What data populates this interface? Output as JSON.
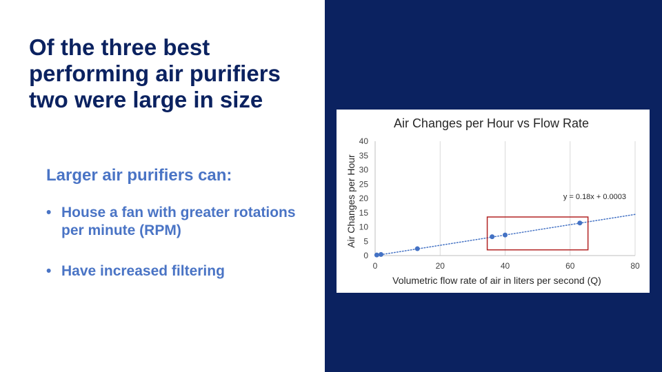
{
  "slide": {
    "title_lines": [
      "Of the three best",
      "performing air purifiers",
      "two were large in size"
    ],
    "subhead": "Larger air purifiers can:",
    "bullet_glyph": "•",
    "bullets": [
      "House a fan with greater rotations per minute (RPM)",
      "Have increased filtering"
    ],
    "colors": {
      "title": "#0b2260",
      "accent": "#4a74c5",
      "panel": "#0b2260",
      "highlight_box": "#b22222"
    }
  },
  "chart_data": {
    "type": "scatter",
    "title": "Air Changes per Hour vs Flow Rate",
    "xlabel": "Volumetric flow rate of air in liters per second (Q)",
    "ylabel": "Air Changes per Hour",
    "xlim": [
      0,
      80
    ],
    "ylim": [
      0,
      40
    ],
    "xticks": [
      0,
      20,
      40,
      60,
      80
    ],
    "yticks": [
      0,
      5,
      10,
      15,
      20,
      25,
      30,
      35,
      40
    ],
    "grid": "vertical",
    "legend": "none",
    "point_color": "#4472c4",
    "points": [
      {
        "x": 0.5,
        "y": 0.2
      },
      {
        "x": 1.8,
        "y": 0.4
      },
      {
        "x": 13.0,
        "y": 2.4
      },
      {
        "x": 36.0,
        "y": 6.6
      },
      {
        "x": 40.0,
        "y": 7.2
      },
      {
        "x": 63.0,
        "y": 11.4
      }
    ],
    "trendline": {
      "slope": 0.18,
      "intercept": 0.0003,
      "x_range": [
        0,
        80
      ],
      "label": "y = 0.18x + 0.0003"
    },
    "highlight_region": {
      "x_range": [
        34.5,
        65.5
      ],
      "y_range": [
        2,
        13.5
      ]
    }
  }
}
